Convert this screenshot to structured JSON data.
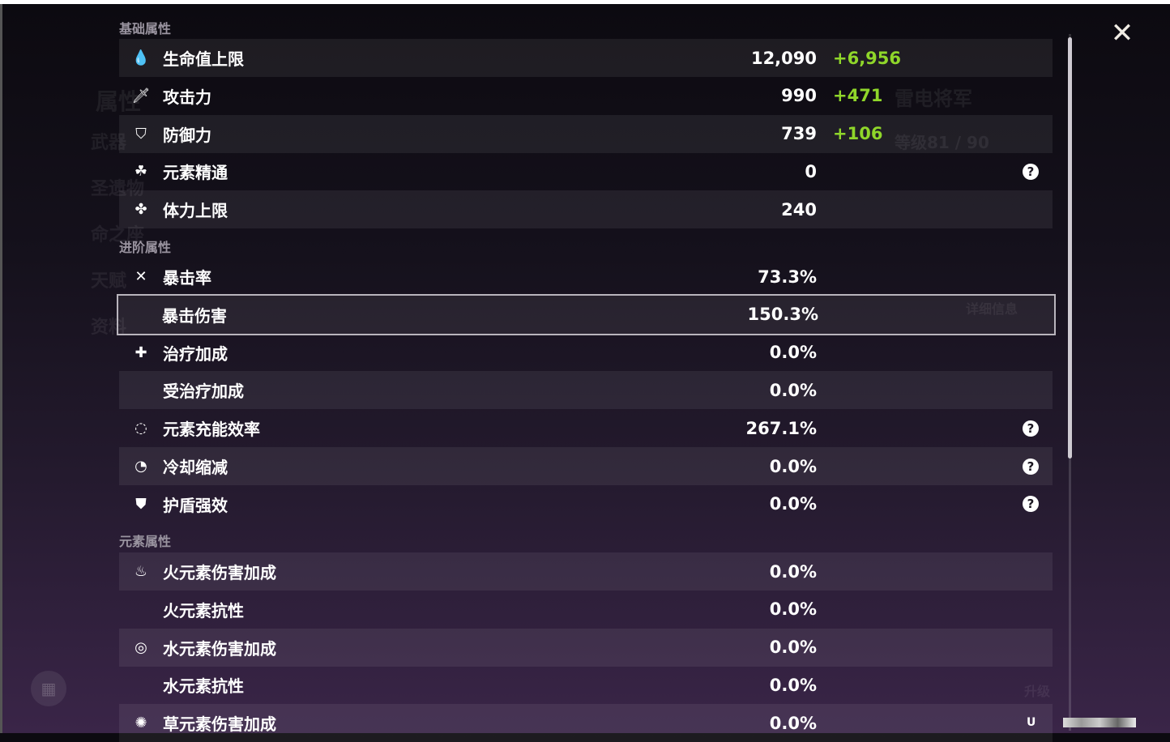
{
  "background": {
    "character_name": "雷电将军",
    "level": "等级81 / 90",
    "side_menu": [
      "属性",
      "武器",
      "圣遗物",
      "命之座",
      "天赋",
      "资料"
    ],
    "upgrade_label": "升级",
    "details_label": "详细信息"
  },
  "sections": [
    {
      "title": "基础属性",
      "rows": [
        {
          "icon": "hp-drop-icon",
          "glyph": "💧",
          "label": "生命值上限",
          "value": "12,090",
          "bonus": "+6,956",
          "help": false
        },
        {
          "icon": "sword-icon",
          "glyph": "🗡",
          "label": "攻击力",
          "value": "990",
          "bonus": "+471",
          "help": false
        },
        {
          "icon": "shield-icon",
          "glyph": "⛉",
          "label": "防御力",
          "value": "739",
          "bonus": "+106",
          "help": false
        },
        {
          "icon": "elemental-mastery-icon",
          "glyph": "☘",
          "label": "元素精通",
          "value": "0",
          "bonus": "",
          "help": true
        },
        {
          "icon": "stamina-icon",
          "glyph": "✤",
          "label": "体力上限",
          "value": "240",
          "bonus": "",
          "help": false
        }
      ]
    },
    {
      "title": "进阶属性",
      "rows": [
        {
          "icon": "crit-rate-icon",
          "glyph": "✕",
          "label": "暴击率",
          "value": "73.3%",
          "bonus": "",
          "help": false
        },
        {
          "icon": "",
          "glyph": "",
          "label": "暴击伤害",
          "value": "150.3%",
          "bonus": "",
          "help": false,
          "selected": true
        },
        {
          "icon": "healing-cross-icon",
          "glyph": "✚",
          "label": "治疗加成",
          "value": "0.0%",
          "bonus": "",
          "help": false
        },
        {
          "icon": "",
          "glyph": "",
          "label": "受治疗加成",
          "value": "0.0%",
          "bonus": "",
          "help": false
        },
        {
          "icon": "energy-recharge-icon",
          "glyph": "◌",
          "label": "元素充能效率",
          "value": "267.1%",
          "bonus": "",
          "help": true
        },
        {
          "icon": "cooldown-icon",
          "glyph": "◔",
          "label": "冷却缩减",
          "value": "0.0%",
          "bonus": "",
          "help": true
        },
        {
          "icon": "shield-strength-icon",
          "glyph": "⛊",
          "label": "护盾强效",
          "value": "0.0%",
          "bonus": "",
          "help": true
        }
      ]
    },
    {
      "title": "元素属性",
      "rows": [
        {
          "icon": "pyro-icon",
          "glyph": "♨",
          "label": "火元素伤害加成",
          "value": "0.0%",
          "bonus": "",
          "help": false
        },
        {
          "icon": "",
          "glyph": "",
          "label": "火元素抗性",
          "value": "0.0%",
          "bonus": "",
          "help": false
        },
        {
          "icon": "hydro-icon",
          "glyph": "◎",
          "label": "水元素伤害加成",
          "value": "0.0%",
          "bonus": "",
          "help": false
        },
        {
          "icon": "",
          "glyph": "",
          "label": "水元素抗性",
          "value": "0.0%",
          "bonus": "",
          "help": false
        },
        {
          "icon": "dendro-icon",
          "glyph": "✺",
          "label": "草元素伤害加成",
          "value": "0.0%",
          "bonus": "",
          "help": false
        }
      ]
    }
  ],
  "help_glyph": "?",
  "close_glyph": "✕",
  "uid_prefix": "U",
  "colors": {
    "bonus": "#8fd62a",
    "selected_border": "#b9b5bd"
  }
}
